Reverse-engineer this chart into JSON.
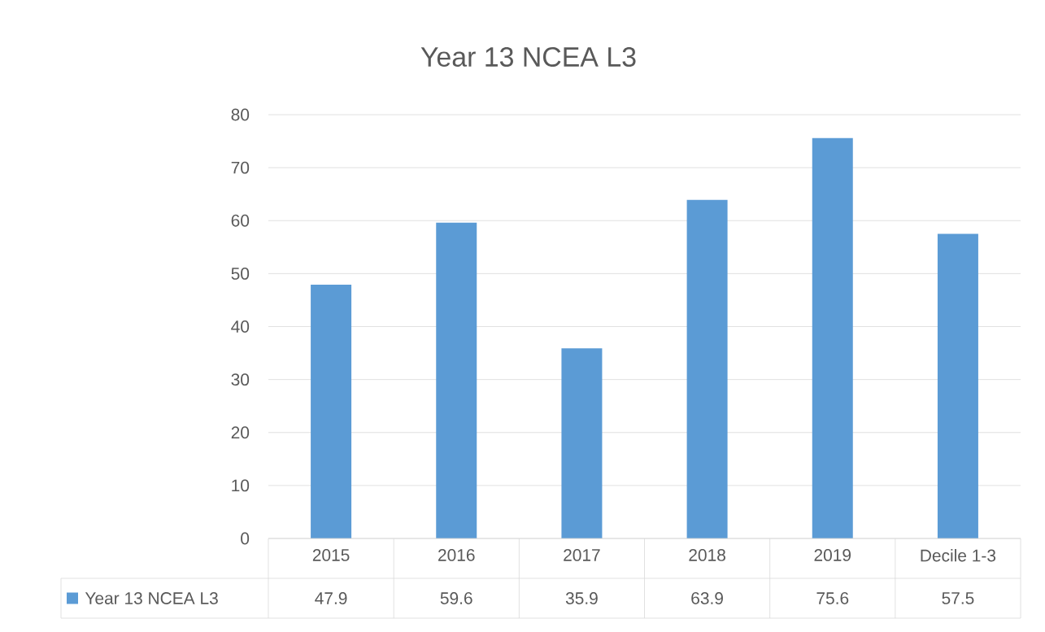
{
  "chart_data": {
    "type": "bar",
    "title": "Year 13 NCEA L3",
    "categories": [
      "2015",
      "2016",
      "2017",
      "2018",
      "2019",
      "Decile 1-3"
    ],
    "series": [
      {
        "name": "Year 13 NCEA L3",
        "color": "#5b9bd5",
        "values": [
          47.9,
          59.6,
          35.9,
          63.9,
          75.6,
          57.5
        ]
      }
    ],
    "ylim": [
      0,
      80
    ],
    "yticks": [
      0,
      10,
      20,
      30,
      40,
      50,
      60,
      70,
      80
    ],
    "grid": "y",
    "legend": "bottom",
    "data_labels": true
  }
}
